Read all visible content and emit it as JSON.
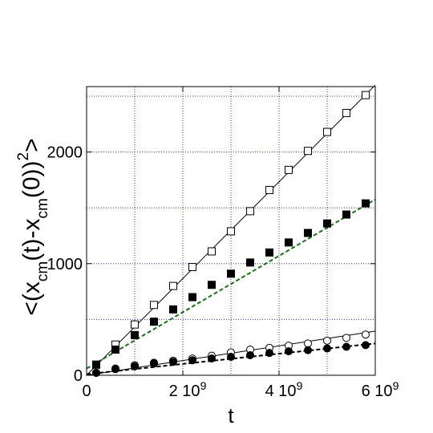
{
  "chart_data": {
    "type": "scatter",
    "title": "",
    "xlabel": "t",
    "ylabel_parts": [
      "<(x",
      "cm",
      "(t)-x",
      "cm",
      "(0))",
      "2",
      ">"
    ],
    "xlim": [
      0,
      6000000000.0
    ],
    "ylim": [
      0,
      2500
    ],
    "grid": true,
    "x_ticks": [
      {
        "value": 0,
        "label": "0"
      },
      {
        "value": 2000000000.0,
        "label": "2 10"
      },
      {
        "value": 4000000000.0,
        "label": "4 10"
      },
      {
        "value": 6000000000.0,
        "label": "6 10"
      }
    ],
    "x_tick_exponent": "9",
    "y_ticks": [
      {
        "value": 0,
        "label": "0"
      },
      {
        "value": 1000,
        "label": "1000"
      },
      {
        "value": 2000,
        "label": "2000"
      }
    ],
    "x_grid": [
      1000000000.0,
      2000000000.0,
      3000000000.0,
      4000000000.0,
      5000000000.0
    ],
    "y_grid": [
      500,
      1000,
      1500,
      2000,
      2500
    ],
    "series": [
      {
        "marker": "open-square",
        "color": "#000000",
        "x": [
          200000000.0,
          600000000.0,
          1000000000.0,
          1400000000.0,
          1800000000.0,
          2200000000.0,
          2600000000.0,
          3000000000.0,
          3400000000.0,
          3800000000.0,
          4200000000.0,
          4600000000.0,
          5000000000.0,
          5400000000.0,
          5800000000.0
        ],
        "y": [
          95,
          275,
          455,
          630,
          800,
          970,
          1110,
          1290,
          1470,
          1660,
          1840,
          2010,
          2180,
          2350,
          2510
        ],
        "fit": {
          "x": [
            0,
            6000000000.0
          ],
          "y": [
            0,
            2600
          ],
          "color": "#000000",
          "dash": ""
        }
      },
      {
        "marker": "filled-square",
        "color": "#000000",
        "x": [
          200000000.0,
          600000000.0,
          1000000000.0,
          1400000000.0,
          1800000000.0,
          2200000000.0,
          2600000000.0,
          3000000000.0,
          3400000000.0,
          3800000000.0,
          4200000000.0,
          4600000000.0,
          5000000000.0,
          5400000000.0,
          5800000000.0
        ],
        "y": [
          95,
          230,
          360,
          480,
          590,
          700,
          810,
          910,
          1010,
          1100,
          1190,
          1275,
          1360,
          1440,
          1540
        ],
        "fit": {
          "x": [
            0,
            6000000000.0
          ],
          "y": [
            60,
            1575
          ],
          "color": "#1a6e1a",
          "dash": "5,3"
        }
      },
      {
        "marker": "open-circle",
        "color": "#000000",
        "x": [
          200000000.0,
          600000000.0,
          1000000000.0,
          1400000000.0,
          1800000000.0,
          2200000000.0,
          2600000000.0,
          3000000000.0,
          3400000000.0,
          3800000000.0,
          4200000000.0,
          4600000000.0,
          5000000000.0,
          5400000000.0,
          5800000000.0
        ],
        "y": [
          22,
          60,
          90,
          112,
          130,
          150,
          175,
          205,
          230,
          245,
          265,
          285,
          310,
          335,
          365
        ],
        "fit": {
          "x": [
            0,
            6000000000.0
          ],
          "y": [
            0,
            395
          ],
          "color": "#000000",
          "dash": ""
        }
      },
      {
        "marker": "filled-circle",
        "color": "#000000",
        "x": [
          200000000.0,
          600000000.0,
          1000000000.0,
          1400000000.0,
          1800000000.0,
          2200000000.0,
          2600000000.0,
          3000000000.0,
          3400000000.0,
          3800000000.0,
          4200000000.0,
          4600000000.0,
          5000000000.0,
          5400000000.0,
          5800000000.0
        ],
        "y": [
          22,
          55,
          80,
          105,
          120,
          135,
          150,
          165,
          180,
          200,
          215,
          225,
          240,
          255,
          270
        ],
        "fit": {
          "x": [
            0,
            6000000000.0
          ],
          "y": [
            10,
            285
          ],
          "color": "#000000",
          "dash": "5,3"
        }
      }
    ]
  }
}
